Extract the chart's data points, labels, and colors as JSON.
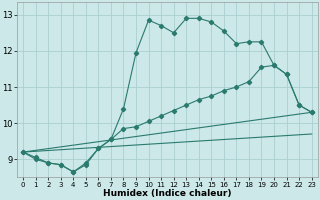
{
  "xlabel": "Humidex (Indice chaleur)",
  "bg_color": "#cce8e8",
  "grid_color": "#aacfcf",
  "line_color": "#2a7a6e",
  "xlim": [
    -0.5,
    23.5
  ],
  "ylim": [
    8.5,
    13.35
  ],
  "xticks": [
    0,
    1,
    2,
    3,
    4,
    5,
    6,
    7,
    8,
    9,
    10,
    11,
    12,
    13,
    14,
    15,
    16,
    17,
    18,
    19,
    20,
    21,
    22,
    23
  ],
  "yticks": [
    9,
    10,
    11,
    12,
    13
  ],
  "curve1_x": [
    0,
    1,
    2,
    3,
    4,
    5,
    6,
    7,
    8,
    9,
    10,
    11,
    12,
    13,
    14,
    15,
    16,
    17,
    18,
    19,
    20,
    21,
    22,
    23
  ],
  "curve1_y": [
    9.2,
    9.0,
    8.9,
    8.85,
    8.65,
    8.9,
    9.3,
    9.55,
    10.4,
    11.95,
    12.85,
    12.7,
    12.5,
    12.9,
    12.9,
    12.8,
    12.55,
    12.2,
    12.25,
    12.25,
    11.6,
    11.35,
    10.5,
    10.3
  ],
  "curve2_x": [
    0,
    1,
    2,
    3,
    4,
    5,
    6,
    7,
    8,
    9,
    10,
    11,
    12,
    13,
    14,
    15,
    16,
    17,
    18,
    19,
    20,
    21,
    22,
    23
  ],
  "curve2_y": [
    9.2,
    9.05,
    8.9,
    8.85,
    8.65,
    8.85,
    9.3,
    9.55,
    9.85,
    9.9,
    10.05,
    10.2,
    10.35,
    10.5,
    10.65,
    10.75,
    10.9,
    11.0,
    11.15,
    11.55,
    11.6,
    11.35,
    10.5,
    10.3
  ],
  "line1_x": [
    0,
    23
  ],
  "line1_y": [
    9.2,
    10.3
  ],
  "line2_x": [
    0,
    23
  ],
  "line2_y": [
    9.2,
    9.7
  ]
}
